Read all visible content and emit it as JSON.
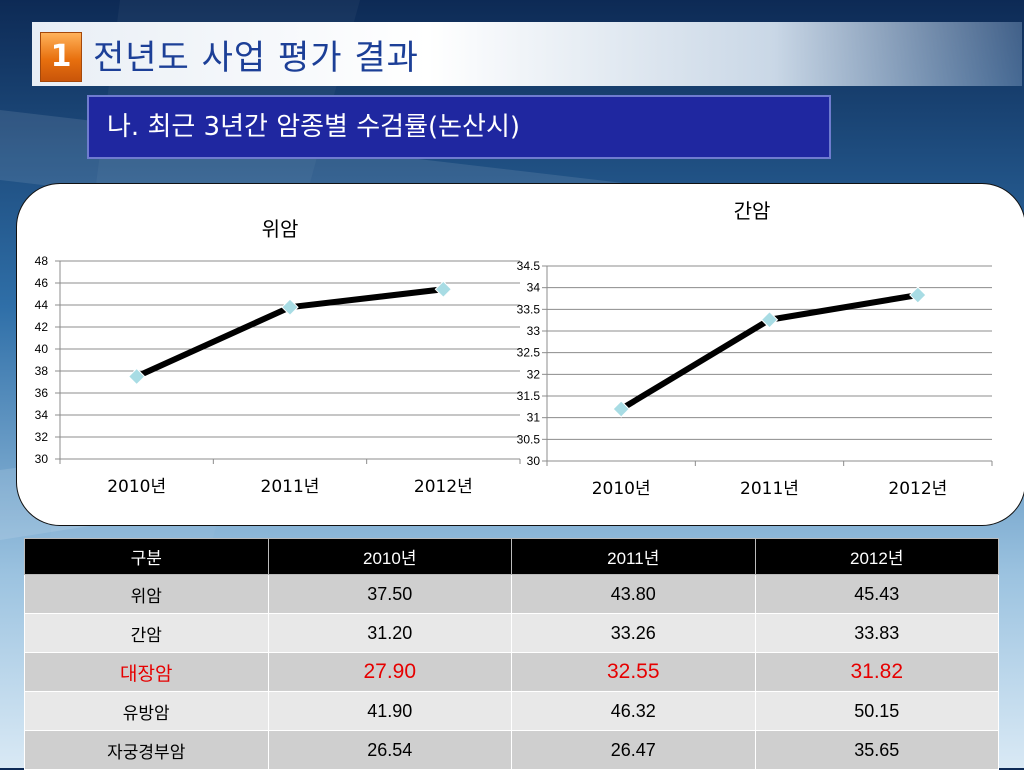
{
  "header": {
    "section_number": "1",
    "title": "전년도 사업 평가 결과",
    "subtitle": "나. 최근 3년간 암종별  수검률(논산시)"
  },
  "chart_data": [
    {
      "type": "line",
      "title": "위암",
      "categories": [
        "2010년",
        "2011년",
        "2012년"
      ],
      "series": [
        {
          "values": [
            37.5,
            43.8,
            45.43
          ]
        }
      ],
      "ylim": [
        30,
        48
      ],
      "yticks": [
        30,
        32,
        34,
        36,
        38,
        40,
        42,
        44,
        46,
        48
      ],
      "xlabel": "",
      "ylabel": "",
      "grid": true,
      "legend": "none",
      "line_color": "#000000",
      "marker_color": "#a8dce4"
    },
    {
      "type": "line",
      "title": "간암",
      "categories": [
        "2010년",
        "2011년",
        "2012년"
      ],
      "series": [
        {
          "values": [
            31.2,
            33.26,
            33.83
          ]
        }
      ],
      "ylim": [
        30,
        34.5
      ],
      "yticks": [
        30,
        30.5,
        31,
        31.5,
        32,
        32.5,
        33,
        33.5,
        34,
        34.5
      ],
      "xlabel": "",
      "ylabel": "",
      "grid": true,
      "legend": "none",
      "line_color": "#000000",
      "marker_color": "#a8dce4"
    }
  ],
  "table": {
    "headers": [
      "구분",
      "2010년",
      "2011년",
      "2012년"
    ],
    "rows": [
      [
        "위암",
        "37.50",
        "43.80",
        "45.43"
      ],
      [
        "간암",
        "31.20",
        "33.26",
        "33.83"
      ],
      [
        "대장암",
        "27.90",
        "32.55",
        "31.82"
      ],
      [
        "유방암",
        "41.90",
        "46.32",
        "50.15"
      ],
      [
        "자궁경부암",
        "26.54",
        "26.47",
        "35.65"
      ]
    ],
    "highlight_row_color": "#e60000"
  }
}
